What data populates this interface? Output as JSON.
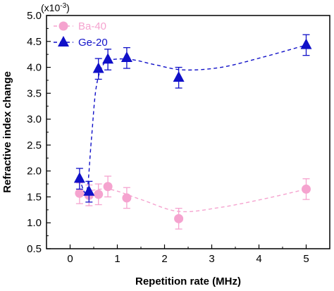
{
  "chart_data": {
    "type": "scatter",
    "xlabel": "Repetition rate (MHz)",
    "ylabel": "Refractive index change",
    "y_multiplier": "(x10",
    "y_multiplier_exp": "-3",
    "y_multiplier_close": ")",
    "xlim": [
      -0.5,
      5.5
    ],
    "ylim": [
      0.5,
      5.0
    ],
    "xticks": [
      "0",
      "1",
      "2",
      "3",
      "4",
      "5"
    ],
    "yticks": [
      "0.5",
      "1.0",
      "1.5",
      "2.0",
      "2.5",
      "3.0",
      "3.5",
      "4.0",
      "4.5",
      "5.0"
    ],
    "legend_position": "top-left",
    "grid": false,
    "series": [
      {
        "name": "Ba-40",
        "marker": "circle",
        "color": "#f5a3cf",
        "line_style": "dashed",
        "x": [
          0.2,
          0.4,
          0.6,
          0.8,
          1.2,
          2.3,
          5.0
        ],
        "y": [
          1.57,
          1.53,
          1.55,
          1.7,
          1.48,
          1.08,
          1.65
        ],
        "yerr": [
          0.2,
          0.2,
          0.2,
          0.2,
          0.2,
          0.2,
          0.2
        ],
        "trend": [
          [
            0.2,
            1.57
          ],
          [
            0.8,
            1.65
          ],
          [
            1.5,
            1.45
          ],
          [
            2.3,
            1.22
          ],
          [
            3.2,
            1.3
          ],
          [
            4.2,
            1.48
          ],
          [
            5.0,
            1.65
          ]
        ]
      },
      {
        "name": "Ge-20",
        "marker": "triangle",
        "color": "#1010c8",
        "line_style": "dashed",
        "x": [
          0.2,
          0.4,
          0.6,
          0.8,
          1.2,
          2.3,
          5.0
        ],
        "y": [
          1.85,
          1.6,
          3.97,
          4.15,
          4.18,
          3.8,
          4.43
        ],
        "yerr": [
          0.2,
          0.2,
          0.2,
          0.2,
          0.2,
          0.2,
          0.2
        ],
        "trend": [
          [
            0.2,
            1.85
          ],
          [
            0.35,
            1.6
          ],
          [
            0.45,
            2.6
          ],
          [
            0.55,
            3.6
          ],
          [
            0.7,
            4.05
          ],
          [
            0.9,
            4.15
          ],
          [
            1.3,
            4.15
          ],
          [
            1.8,
            4.05
          ],
          [
            2.4,
            3.95
          ],
          [
            3.2,
            4.0
          ],
          [
            4.1,
            4.2
          ],
          [
            5.0,
            4.43
          ]
        ]
      }
    ]
  }
}
